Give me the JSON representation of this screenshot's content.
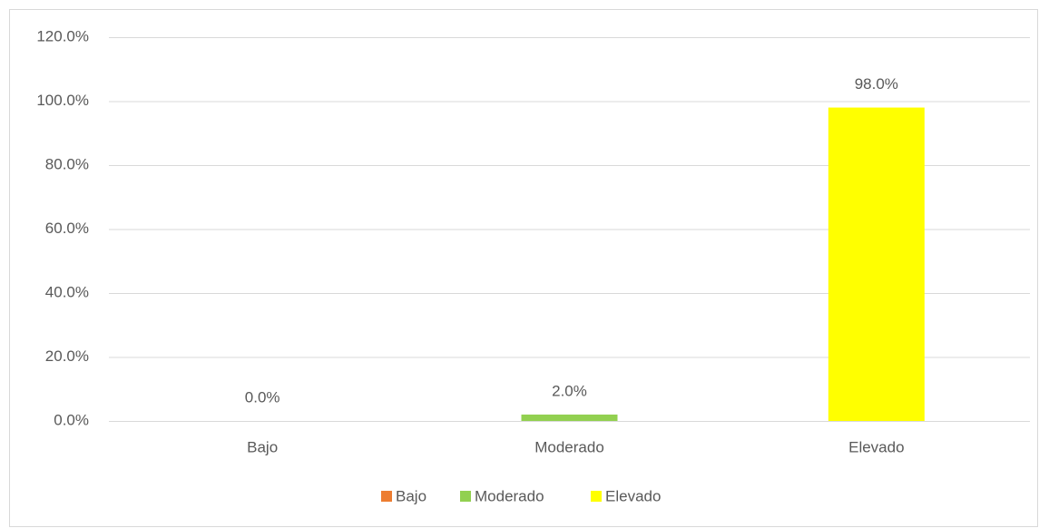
{
  "chart_data": {
    "type": "bar",
    "categories": [
      "Bajo",
      "Moderado",
      "Elevado"
    ],
    "values": [
      0,
      2,
      98
    ],
    "value_labels": [
      "0.0%",
      "2.0%",
      "98.0%"
    ],
    "colors": [
      "#ed7d31",
      "#92d050",
      "#ffff00"
    ],
    "ylim": [
      0,
      120
    ],
    "yticks": [
      {
        "value": 0,
        "label": "0.0%"
      },
      {
        "value": 20,
        "label": "20.0%"
      },
      {
        "value": 40,
        "label": "40.0%"
      },
      {
        "value": 60,
        "label": "60.0%"
      },
      {
        "value": 80,
        "label": "80.0%"
      },
      {
        "value": 100,
        "label": "100.0%"
      },
      {
        "value": 120,
        "label": "120.0%"
      }
    ],
    "grid": true,
    "legend": "bottom"
  }
}
